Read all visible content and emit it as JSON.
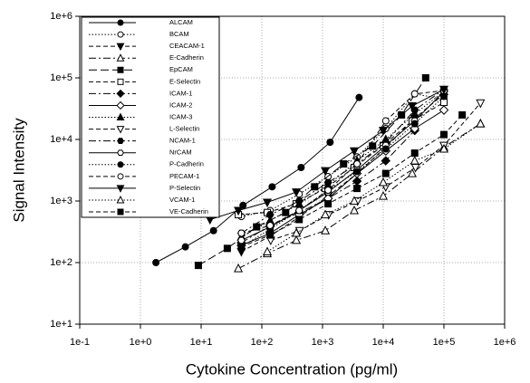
{
  "chart_data": {
    "type": "line",
    "xlabel": "Cytokine Concentration (pg/ml)",
    "ylabel": "Signal Intensity",
    "xscale": "log",
    "yscale": "log",
    "xlim": [
      0.1,
      1000000
    ],
    "ylim": [
      10,
      1000000
    ],
    "xticks": [
      {
        "value": 0.1,
        "label": "1e-1"
      },
      {
        "value": 1,
        "label": "1e+0"
      },
      {
        "value": 10,
        "label": "1e+1"
      },
      {
        "value": 100,
        "label": "1e+2"
      },
      {
        "value": 1000,
        "label": "1e+3"
      },
      {
        "value": 10000,
        "label": "1e+4"
      },
      {
        "value": 100000,
        "label": "1e+5"
      },
      {
        "value": 1000000,
        "label": "1e+6"
      }
    ],
    "yticks": [
      {
        "value": 10,
        "label": "1e+1"
      },
      {
        "value": 100,
        "label": "1e+2"
      },
      {
        "value": 1000,
        "label": "1e+3"
      },
      {
        "value": 10000,
        "label": "1e+4"
      },
      {
        "value": 100000,
        "label": "1e+5"
      },
      {
        "value": 1000000,
        "label": "1e+6"
      }
    ],
    "grid": true,
    "legend": "upper left",
    "series": [
      {
        "name": "ALCAM",
        "color": "#000000",
        "marker": "circle",
        "filled": true,
        "line": "solid",
        "x": [
          1.8,
          5.5,
          16,
          49,
          148,
          444,
          1333,
          4000
        ],
        "values": [
          100,
          180,
          330,
          850,
          1700,
          3500,
          9000,
          48000
        ]
      },
      {
        "name": "BCAM",
        "color": "#000000",
        "marker": "circle",
        "filled": false,
        "line": "dotted",
        "x": [
          46,
          137,
          412,
          1235,
          3700,
          11000,
          33000,
          100000
        ],
        "values": [
          560,
          700,
          1300,
          2500,
          5200,
          15000,
          55000,
          45000
        ]
      },
      {
        "name": "CEACAM-1",
        "color": "#000000",
        "marker": "triangle-down",
        "filled": true,
        "line": "dashed",
        "x": [
          46,
          137,
          412,
          1235,
          3700,
          11000,
          33000,
          100000
        ],
        "values": [
          150,
          270,
          550,
          1200,
          2800,
          7500,
          22000,
          55000
        ]
      },
      {
        "name": "E-Cadherin",
        "color": "#000000",
        "marker": "triangle-up",
        "filled": false,
        "line": "dashdot",
        "x": [
          41,
          123,
          370,
          1111,
          3333,
          10000,
          30000,
          100000,
          400000
        ],
        "values": [
          80,
          140,
          230,
          330,
          700,
          1200,
          2800,
          7500,
          18000
        ]
      },
      {
        "name": "EpCAM",
        "color": "#000000",
        "marker": "square",
        "filled": true,
        "line": "longdash",
        "x": [
          9,
          27,
          82,
          247,
          741,
          2222,
          6667,
          20000,
          50000
        ],
        "values": [
          90,
          170,
          380,
          650,
          1700,
          4000,
          7800,
          25000,
          100000
        ]
      },
      {
        "name": "E-Selectin",
        "color": "#000000",
        "marker": "square",
        "filled": false,
        "line": "dashed",
        "x": [
          41,
          123,
          370,
          1111,
          3333,
          10000,
          30000,
          100000
        ],
        "values": [
          600,
          650,
          900,
          1600,
          3500,
          8000,
          20000,
          40000
        ]
      },
      {
        "name": "ICAM-1",
        "color": "#000000",
        "marker": "diamond",
        "filled": true,
        "line": "dashdot",
        "x": [
          46,
          137,
          412,
          1235,
          3700,
          11000,
          33000
        ],
        "values": [
          210,
          400,
          650,
          1100,
          2100,
          4500,
          14000
        ]
      },
      {
        "name": "ICAM-2",
        "color": "#000000",
        "marker": "diamond",
        "filled": false,
        "line": "solid",
        "x": [
          46,
          137,
          412,
          1235,
          3700,
          11000,
          33000,
          100000
        ],
        "values": [
          190,
          300,
          600,
          1100,
          2800,
          6500,
          15000,
          30000
        ]
      },
      {
        "name": "ICAM-3",
        "color": "#000000",
        "marker": "triangle-up",
        "filled": true,
        "line": "dotted",
        "x": [
          46,
          137,
          412,
          1235,
          3700,
          11000,
          33000,
          100000
        ],
        "values": [
          260,
          480,
          900,
          1800,
          4500,
          10000,
          26000,
          60000
        ]
      },
      {
        "name": "L-Selectin",
        "color": "#000000",
        "marker": "triangle-down",
        "filled": false,
        "line": "dashed",
        "x": [
          140,
          420,
          1260,
          3780,
          11000,
          34000,
          100000,
          400000
        ],
        "values": [
          230,
          330,
          600,
          1000,
          1700,
          3500,
          8000,
          39000
        ]
      },
      {
        "name": "NCAM-1",
        "color": "#000000",
        "marker": "hexagon",
        "filled": true,
        "line": "dashdot",
        "x": [
          46,
          137,
          412,
          1235,
          3700,
          11000,
          33000,
          100000
        ],
        "values": [
          300,
          600,
          1000,
          2000,
          4000,
          9000,
          30000,
          65000
        ]
      },
      {
        "name": "NrCAM",
        "color": "#000000",
        "marker": "hexagon",
        "filled": false,
        "line": "solid",
        "x": [
          46,
          137,
          412,
          1235,
          3700,
          11000,
          33000,
          100000
        ],
        "values": [
          230,
          380,
          700,
          1400,
          3200,
          8000,
          20000,
          60000
        ]
      },
      {
        "name": "P-Cadherin",
        "color": "#000000",
        "marker": "circle",
        "filled": true,
        "line": "dotted",
        "x": [
          46,
          137,
          412,
          1235,
          3700,
          11000,
          33000,
          100000
        ],
        "values": [
          180,
          350,
          700,
          1500,
          3000,
          7000,
          18000,
          50000
        ]
      },
      {
        "name": "PECAM-1",
        "color": "#000000",
        "marker": "circle",
        "filled": false,
        "line": "dashed",
        "x": [
          46,
          137,
          412,
          1235,
          3700,
          11000,
          33000,
          100000
        ],
        "values": [
          300,
          400,
          700,
          1500,
          4000,
          20000,
          55000,
          62000
        ]
      },
      {
        "name": "P-Selectin",
        "color": "#000000",
        "marker": "triangle-down",
        "filled": true,
        "line": "solid",
        "x": [
          14,
          41,
          123,
          370,
          1111,
          3333,
          10000,
          30000,
          100000
        ],
        "values": [
          500,
          700,
          950,
          1400,
          3100,
          6500,
          14000,
          35000,
          65000
        ]
      },
      {
        "name": "VCAM-1",
        "color": "#000000",
        "marker": "triangle-up",
        "filled": false,
        "line": "dotted",
        "x": [
          123,
          370,
          1111,
          3333,
          10000,
          33000,
          100000,
          400000
        ],
        "values": [
          150,
          300,
          600,
          1000,
          2000,
          4500,
          7000,
          18000
        ]
      },
      {
        "name": "VE-Cadherin",
        "color": "#000000",
        "marker": "square",
        "filled": true,
        "line": "dashed",
        "x": [
          46,
          137,
          412,
          1235,
          3700,
          11000,
          33000,
          100000,
          200000
        ],
        "values": [
          180,
          280,
          500,
          900,
          1600,
          2800,
          6000,
          12000,
          25000
        ]
      }
    ]
  }
}
